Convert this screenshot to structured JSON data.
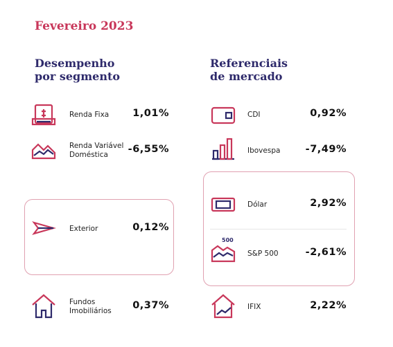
{
  "header": {
    "title": "Fevereiro 2023"
  },
  "segments": {
    "title": [
      "Desempenho",
      "por segmento"
    ],
    "items": [
      {
        "label": [
          "Renda Fixa"
        ],
        "value": "1,01%"
      },
      {
        "label": [
          "Renda Variável",
          "Doméstica"
        ],
        "value": "-6,55%"
      },
      {
        "label": [
          "Exterior"
        ],
        "value": "0,12%"
      },
      {
        "label": [
          "Fundos",
          "Imobiliários"
        ],
        "value": "0,37%"
      }
    ]
  },
  "benchmarks": {
    "title": [
      "Referenciais",
      "de mercado"
    ],
    "items": [
      {
        "label": [
          "CDI"
        ],
        "value": "0,92%"
      },
      {
        "label": [
          "Ibovespa"
        ],
        "value": "-7,49%"
      },
      {
        "label": [
          "Dólar"
        ],
        "value": "2,92%"
      },
      {
        "label": [
          "S&P 500"
        ],
        "value": "-2,61%",
        "icon_text": "500"
      },
      {
        "label": [
          "IFIX"
        ],
        "value": "2,22%"
      }
    ]
  }
}
